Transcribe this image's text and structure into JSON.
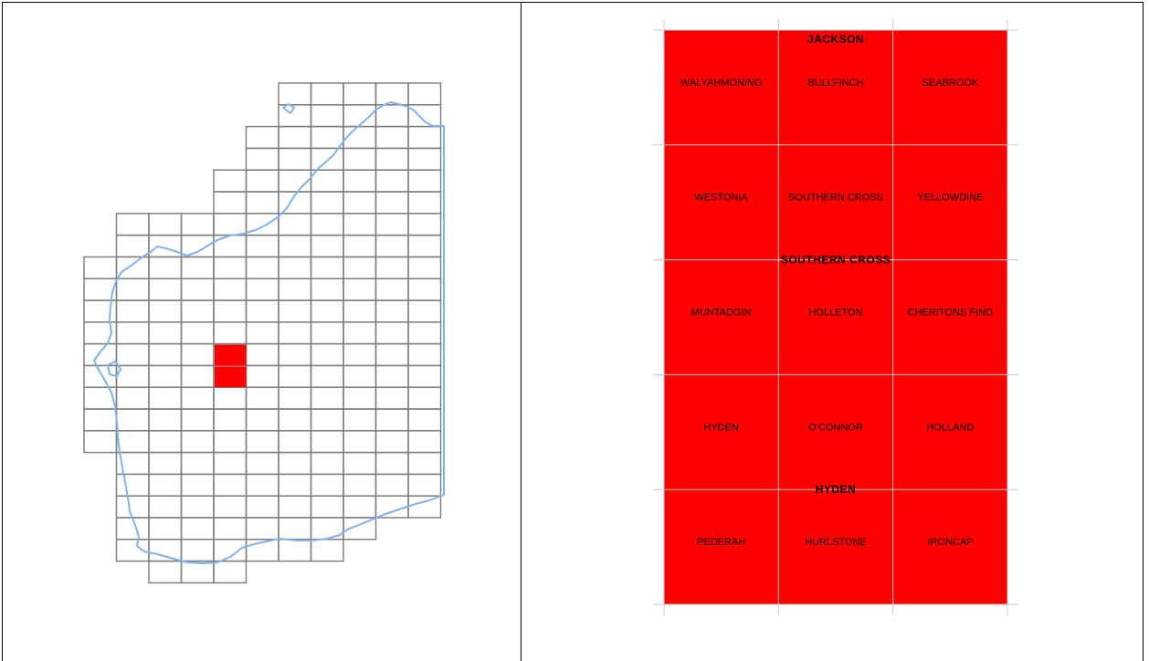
{
  "colors": {
    "highlight": "#ff0000",
    "grid": "#808080",
    "coast": "#7fb2f0",
    "tile_grid": "#c8c8c8",
    "frame": "#000000"
  },
  "overview": {
    "highlighted_tiles": [
      {
        "col": 4,
        "row": 12
      },
      {
        "col": 4,
        "row": 13
      }
    ]
  },
  "sheets": [
    {
      "label": "JACKSON"
    },
    {
      "label": "SOUTHERN CROSS"
    },
    {
      "label": "HYDEN"
    }
  ],
  "tiles": [
    [
      "WALYAHMONING",
      "BULLFINCH",
      "SEABROOK"
    ],
    [
      "WESTONIA",
      "SOUTHERN CROSS",
      "YELLOWDINE"
    ],
    [
      "MUNTADGIN",
      "HOLLETON",
      "CHERITONS FIND"
    ],
    [
      "HYDEN",
      "O'CONNOR",
      "HOLLAND"
    ],
    [
      "PEDERAH",
      "HURLSTONE",
      "IRONCAP"
    ]
  ]
}
